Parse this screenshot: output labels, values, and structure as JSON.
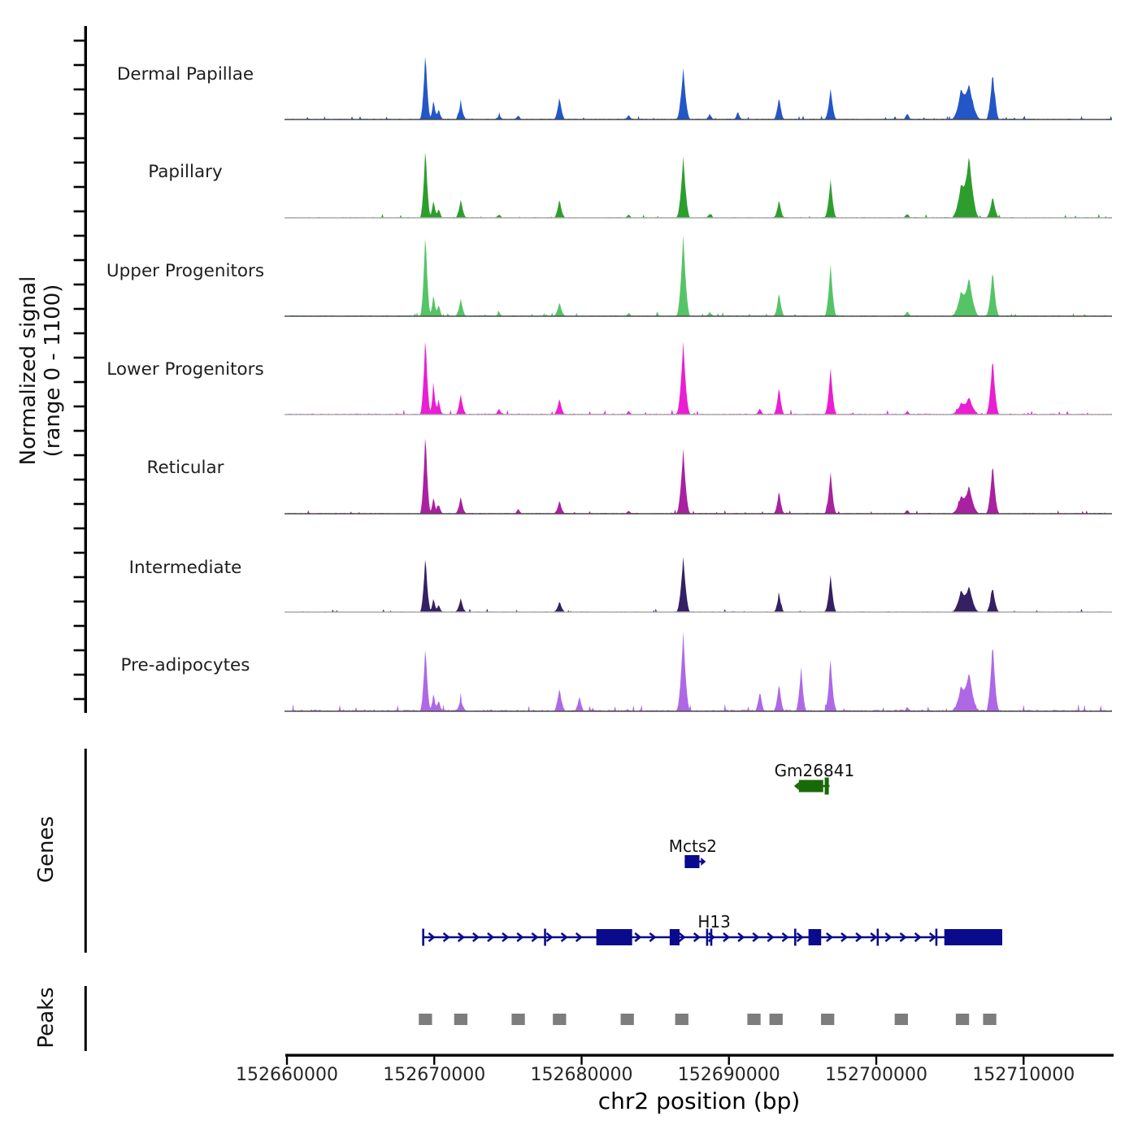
{
  "figure": {
    "background": "#ffffff"
  },
  "y_axis": {
    "label_line1": "Normalized signal",
    "label_line2": "(range 0 - 1100)",
    "range_min": 0,
    "range_max": 1100
  },
  "x_axis": {
    "title": "chr2 position (bp)",
    "chrom": "chr2",
    "bp_min": 152660000,
    "bp_max": 152716000,
    "ticks": [
      {
        "bp": 152660000,
        "label": "152660000"
      },
      {
        "bp": 152670000,
        "label": "152670000"
      },
      {
        "bp": 152680000,
        "label": "152680000"
      },
      {
        "bp": 152690000,
        "label": "152690000"
      },
      {
        "bp": 152700000,
        "label": "152700000"
      },
      {
        "bp": 152710000,
        "label": "152710000"
      }
    ]
  },
  "sections": {
    "genes_label": "Genes",
    "peaks_label": "Peaks"
  },
  "chart_data": {
    "type": "area",
    "x_unit": "bp on chr2",
    "signal_range": [
      0,
      1100
    ],
    "note": "peaks are [position_bp, signal_value_0_1100, halfwidth_bp]",
    "tracks": [
      {
        "name": "Dermal Papillae",
        "color": "#2356c7",
        "axis_color": "#4a4a4a",
        "peaks": [
          [
            152669400,
            815,
            380
          ],
          [
            152669950,
            240,
            300
          ],
          [
            152670300,
            130,
            300
          ],
          [
            152671800,
            200,
            380
          ],
          [
            152674400,
            55,
            300
          ],
          [
            152675700,
            45,
            300
          ],
          [
            152678500,
            265,
            400
          ],
          [
            152683200,
            55,
            300
          ],
          [
            152686900,
            605,
            480
          ],
          [
            152688700,
            65,
            300
          ],
          [
            152690600,
            90,
            300
          ],
          [
            152693400,
            265,
            380
          ],
          [
            152696900,
            365,
            420
          ],
          [
            152702100,
            75,
            300
          ],
          [
            152705750,
            330,
            650
          ],
          [
            152706300,
            420,
            800
          ],
          [
            152707900,
            570,
            460
          ]
        ]
      },
      {
        "name": "Papillary",
        "color": "#2d9e2d",
        "axis_color": "#ababab",
        "peaks": [
          [
            152669400,
            860,
            380
          ],
          [
            152669950,
            220,
            300
          ],
          [
            152670300,
            110,
            300
          ],
          [
            152671800,
            220,
            380
          ],
          [
            152674400,
            40,
            300
          ],
          [
            152678500,
            220,
            400
          ],
          [
            152683200,
            40,
            300
          ],
          [
            152686900,
            730,
            480
          ],
          [
            152688700,
            50,
            300
          ],
          [
            152693400,
            220,
            380
          ],
          [
            152696900,
            460,
            420
          ],
          [
            152702100,
            50,
            300
          ],
          [
            152705750,
            380,
            650
          ],
          [
            152706300,
            740,
            700
          ],
          [
            152707900,
            260,
            460
          ]
        ]
      },
      {
        "name": "Upper Progenitors",
        "color": "#55c466",
        "axis_color": "#4a4a4a",
        "peaks": [
          [
            152669400,
            1020,
            380
          ],
          [
            152669950,
            270,
            300
          ],
          [
            152670300,
            140,
            300
          ],
          [
            152671800,
            210,
            380
          ],
          [
            152674400,
            40,
            300
          ],
          [
            152678500,
            165,
            400
          ],
          [
            152683200,
            40,
            300
          ],
          [
            152686900,
            970,
            480
          ],
          [
            152688700,
            50,
            300
          ],
          [
            152693400,
            290,
            380
          ],
          [
            152696900,
            620,
            420
          ],
          [
            152702100,
            55,
            300
          ],
          [
            152705750,
            280,
            650
          ],
          [
            152706300,
            460,
            700
          ],
          [
            152707900,
            555,
            460
          ]
        ]
      },
      {
        "name": "Lower Progenitors",
        "color": "#ea1ed2",
        "axis_color": "#ababab",
        "peaks": [
          [
            152669400,
            945,
            380
          ],
          [
            152669950,
            375,
            300
          ],
          [
            152670300,
            175,
            300
          ],
          [
            152671800,
            240,
            380
          ],
          [
            152674400,
            65,
            300
          ],
          [
            152678500,
            185,
            400
          ],
          [
            152683200,
            40,
            300
          ],
          [
            152686900,
            860,
            480
          ],
          [
            152692100,
            75,
            300
          ],
          [
            152693400,
            330,
            380
          ],
          [
            152696900,
            550,
            420
          ],
          [
            152702100,
            40,
            300
          ],
          [
            152705750,
            130,
            650
          ],
          [
            152706300,
            205,
            700
          ],
          [
            152707900,
            680,
            460
          ]
        ]
      },
      {
        "name": "Reticular",
        "color": "#a821a0",
        "axis_color": "#4a4a4a",
        "peaks": [
          [
            152669400,
            990,
            380
          ],
          [
            152669950,
            200,
            300
          ],
          [
            152670300,
            110,
            300
          ],
          [
            152671800,
            200,
            380
          ],
          [
            152675700,
            55,
            300
          ],
          [
            152678500,
            155,
            400
          ],
          [
            152683200,
            35,
            300
          ],
          [
            152686900,
            770,
            480
          ],
          [
            152693400,
            275,
            380
          ],
          [
            152696900,
            495,
            420
          ],
          [
            152702100,
            45,
            300
          ],
          [
            152705750,
            200,
            650
          ],
          [
            152706300,
            330,
            700
          ],
          [
            152707900,
            605,
            460
          ]
        ]
      },
      {
        "name": "Intermediate",
        "color": "#342063",
        "axis_color": "#ababab",
        "peaks": [
          [
            152669400,
            680,
            380
          ],
          [
            152669950,
            165,
            300
          ],
          [
            152670300,
            90,
            300
          ],
          [
            152671800,
            165,
            380
          ],
          [
            152678500,
            130,
            400
          ],
          [
            152686900,
            660,
            480
          ],
          [
            152693400,
            220,
            380
          ],
          [
            152696900,
            440,
            420
          ],
          [
            152705750,
            250,
            650
          ],
          [
            152706300,
            310,
            700
          ],
          [
            152707900,
            300,
            460
          ]
        ]
      },
      {
        "name": "Pre-adipocytes",
        "color": "#ae68e6",
        "axis_color": "#4a4a4a",
        "peaks": [
          [
            152669400,
            790,
            380
          ],
          [
            152669950,
            220,
            300
          ],
          [
            152670300,
            130,
            300
          ],
          [
            152671800,
            145,
            380
          ],
          [
            152678500,
            275,
            400
          ],
          [
            152679850,
            175,
            350
          ],
          [
            152686900,
            935,
            480
          ],
          [
            152692100,
            240,
            350
          ],
          [
            152693400,
            330,
            380
          ],
          [
            152694900,
            530,
            380
          ],
          [
            152696900,
            605,
            420
          ],
          [
            152702100,
            40,
            300
          ],
          [
            152705750,
            280,
            650
          ],
          [
            152706300,
            460,
            700
          ],
          [
            152707900,
            825,
            460
          ]
        ]
      }
    ]
  },
  "genes": [
    {
      "name": "Gm26841",
      "color": "#186a08",
      "strand": "-",
      "row": 0,
      "line": [
        152694750,
        152696830
      ],
      "boxes": [
        [
          152694750,
          152696400,
          15
        ],
        [
          152696500,
          152696780,
          21
        ]
      ],
      "ticks": [],
      "arrows": false,
      "notch": "left",
      "label_bp": 152695800
    },
    {
      "name": "Mcts2",
      "color": "#0a0a8c",
      "strand": "+",
      "row": 1,
      "line": [
        152687000,
        152688100
      ],
      "boxes": [
        [
          152687000,
          152688000,
          16
        ]
      ],
      "ticks": [],
      "arrows": false,
      "notch": "right",
      "label_bp": 152687550
    },
    {
      "name": "H13",
      "color": "#0a0a8c",
      "strand": "+",
      "row": 2,
      "line": [
        152669250,
        152708550
      ],
      "boxes": [
        [
          152681000,
          152683430,
          20
        ],
        [
          152685980,
          152686650,
          20
        ],
        [
          152695400,
          152696260,
          20
        ],
        [
          152704620,
          152708550,
          20
        ]
      ],
      "ticks": [
        152669250,
        152677520,
        152688520,
        152688800,
        152694500,
        152700100,
        152704080
      ],
      "arrows": true,
      "notch": "none",
      "label_bp": 152689000
    }
  ],
  "peaks_track": {
    "color": "#7d7d7d",
    "box_width_bp": 900,
    "positions": [
      152669400,
      152671800,
      152675700,
      152678500,
      152683100,
      152686800,
      152691700,
      152693200,
      152696700,
      152701700,
      152705850,
      152707700
    ]
  }
}
